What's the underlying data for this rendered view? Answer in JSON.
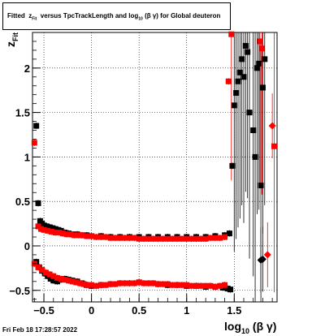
{
  "title": {
    "prefix": "Fitted",
    "z": "z",
    "z_sub": "Fit",
    "middle": "versus TpcTrackLength and log",
    "log_sub": "10",
    "suffix": "(β γ) for Global deuteron"
  },
  "footer": "Fri Feb 18 17:28:57 2022",
  "chart_data": {
    "type": "scatter",
    "xlabel_main": "log",
    "xlabel_sub": "10",
    "xlabel_suffix": "(β γ)",
    "ylabel_main": "z",
    "ylabel_sub": "Fit",
    "xlim": [
      -0.62,
      1.95
    ],
    "ylim": [
      -0.63,
      2.4
    ],
    "grid": true,
    "x_ticks": [
      -0.5,
      0,
      0.5,
      1,
      1.5
    ],
    "x_tick_labels": [
      "−0.5",
      "0",
      "0.5",
      "1",
      "1.5"
    ],
    "y_ticks": [
      -0.5,
      0,
      0.5,
      1,
      1.5,
      2
    ],
    "y_tick_labels": [
      "−0.5",
      "0",
      "0.5",
      "1",
      "1.5",
      "2"
    ],
    "series": [
      {
        "color": "#000000",
        "marker": "square",
        "upper_band": [
          [
            -0.58,
            1.35
          ],
          [
            -0.56,
            0.48
          ],
          [
            -0.54,
            0.28
          ],
          [
            -0.52,
            0.25
          ],
          [
            -0.5,
            0.23
          ],
          [
            -0.47,
            0.22
          ],
          [
            -0.44,
            0.21
          ],
          [
            -0.41,
            0.2
          ],
          [
            -0.38,
            0.19
          ],
          [
            -0.35,
            0.18
          ],
          [
            -0.32,
            0.17
          ],
          [
            -0.28,
            0.15
          ],
          [
            -0.24,
            0.14
          ],
          [
            -0.2,
            0.13
          ],
          [
            -0.15,
            0.13
          ],
          [
            -0.1,
            0.12
          ],
          [
            -0.05,
            0.12
          ],
          [
            0,
            0.11
          ],
          [
            0.1,
            0.11
          ],
          [
            0.2,
            0.1
          ],
          [
            0.3,
            0.1
          ],
          [
            0.4,
            0.1
          ],
          [
            0.5,
            0.1
          ],
          [
            0.6,
            0.1
          ],
          [
            0.7,
            0.1
          ],
          [
            0.8,
            0.1
          ],
          [
            0.9,
            0.1
          ],
          [
            1.0,
            0.1
          ],
          [
            1.1,
            0.1
          ],
          [
            1.2,
            0.1
          ],
          [
            1.3,
            0.11
          ],
          [
            1.4,
            0.12
          ],
          [
            1.45,
            0.14
          ],
          [
            1.48,
            0.9
          ]
        ],
        "lower_band": [
          [
            -0.58,
            -0.18
          ],
          [
            -0.55,
            -0.24
          ],
          [
            -0.52,
            -0.28
          ],
          [
            -0.49,
            -0.31
          ],
          [
            -0.46,
            -0.34
          ],
          [
            -0.43,
            -0.37
          ],
          [
            -0.4,
            -0.39
          ],
          [
            -0.36,
            -0.4
          ],
          [
            -0.32,
            -0.38
          ],
          [
            -0.28,
            -0.37
          ],
          [
            -0.24,
            -0.38
          ],
          [
            -0.2,
            -0.39
          ],
          [
            -0.15,
            -0.4
          ],
          [
            -0.1,
            -0.42
          ],
          [
            -0.05,
            -0.44
          ],
          [
            0,
            -0.45
          ],
          [
            0.1,
            -0.44
          ],
          [
            0.2,
            -0.43
          ],
          [
            0.3,
            -0.42
          ],
          [
            0.4,
            -0.42
          ],
          [
            0.5,
            -0.41
          ],
          [
            0.6,
            -0.42
          ],
          [
            0.7,
            -0.43
          ],
          [
            0.8,
            -0.44
          ],
          [
            0.9,
            -0.44
          ],
          [
            1.0,
            -0.45
          ],
          [
            1.1,
            -0.45
          ],
          [
            1.2,
            -0.46
          ],
          [
            1.3,
            -0.46
          ],
          [
            1.38,
            -0.47
          ],
          [
            1.43,
            -0.48
          ],
          [
            1.46,
            -0.49
          ]
        ],
        "high_points": [
          [
            1.5,
            1.58
          ],
          [
            1.52,
            1.72
          ],
          [
            1.54,
            1.85
          ],
          [
            1.56,
            1.95
          ],
          [
            1.58,
            2.1
          ],
          [
            1.6,
            1.9
          ],
          [
            1.62,
            2.25
          ],
          [
            1.64,
            2.18
          ],
          [
            1.66,
            1.5
          ],
          [
            1.7,
            1.3
          ],
          [
            1.72,
            1.0
          ],
          [
            1.74,
            2.0
          ],
          [
            1.76,
            2.05
          ],
          [
            1.78,
            0.68
          ],
          [
            1.8,
            1.78
          ],
          [
            1.82,
            2.1
          ]
        ],
        "edge_points": [
          [
            1.78,
            -0.16
          ],
          [
            1.8,
            -0.15
          ]
        ]
      },
      {
        "color": "#ff0000",
        "marker": "square",
        "upper_band": [
          [
            -0.6,
            1.16
          ],
          [
            -0.56,
            0.22
          ],
          [
            -0.53,
            0.19
          ],
          [
            -0.5,
            0.18
          ],
          [
            -0.46,
            0.17
          ],
          [
            -0.42,
            0.16
          ],
          [
            -0.38,
            0.15
          ],
          [
            -0.34,
            0.15
          ],
          [
            -0.3,
            0.14
          ],
          [
            -0.26,
            0.13
          ],
          [
            -0.22,
            0.13
          ],
          [
            -0.18,
            0.12
          ],
          [
            -0.14,
            0.12
          ],
          [
            -0.1,
            0.12
          ],
          [
            -0.05,
            0.11
          ],
          [
            0,
            0.11
          ],
          [
            0.05,
            0.1
          ],
          [
            0.1,
            0.1
          ],
          [
            0.15,
            0.1
          ],
          [
            0.2,
            0.09
          ],
          [
            0.25,
            0.09
          ],
          [
            0.3,
            0.09
          ],
          [
            0.35,
            0.09
          ],
          [
            0.4,
            0.09
          ],
          [
            0.45,
            0.09
          ],
          [
            0.5,
            0.08
          ],
          [
            0.55,
            0.08
          ],
          [
            0.6,
            0.08
          ],
          [
            0.65,
            0.08
          ],
          [
            0.7,
            0.08
          ],
          [
            0.75,
            0.08
          ],
          [
            0.8,
            0.08
          ],
          [
            0.85,
            0.08
          ],
          [
            0.9,
            0.08
          ],
          [
            0.95,
            0.08
          ],
          [
            1.0,
            0.08
          ],
          [
            1.05,
            0.08
          ],
          [
            1.1,
            0.08
          ],
          [
            1.15,
            0.08
          ],
          [
            1.2,
            0.08
          ],
          [
            1.25,
            0.09
          ],
          [
            1.3,
            0.09
          ],
          [
            1.35,
            0.09
          ],
          [
            1.4,
            0.1
          ],
          [
            1.44,
            1.85
          ]
        ],
        "lower_band": [
          [
            -0.6,
            -0.2
          ],
          [
            -0.56,
            -0.24
          ],
          [
            -0.52,
            -0.27
          ],
          [
            -0.48,
            -0.3
          ],
          [
            -0.44,
            -0.32
          ],
          [
            -0.4,
            -0.34
          ],
          [
            -0.36,
            -0.36
          ],
          [
            -0.32,
            -0.37
          ],
          [
            -0.28,
            -0.38
          ],
          [
            -0.24,
            -0.39
          ],
          [
            -0.2,
            -0.4
          ],
          [
            -0.16,
            -0.41
          ],
          [
            -0.12,
            -0.42
          ],
          [
            -0.08,
            -0.43
          ],
          [
            -0.04,
            -0.44
          ],
          [
            0,
            -0.44
          ],
          [
            0.05,
            -0.45
          ],
          [
            0.1,
            -0.44
          ],
          [
            0.15,
            -0.44
          ],
          [
            0.2,
            -0.43
          ],
          [
            0.25,
            -0.43
          ],
          [
            0.3,
            -0.42
          ],
          [
            0.35,
            -0.42
          ],
          [
            0.4,
            -0.42
          ],
          [
            0.45,
            -0.42
          ],
          [
            0.5,
            -0.41
          ],
          [
            0.55,
            -0.42
          ],
          [
            0.6,
            -0.42
          ],
          [
            0.65,
            -0.42
          ],
          [
            0.7,
            -0.43
          ],
          [
            0.75,
            -0.43
          ],
          [
            0.8,
            -0.43
          ],
          [
            0.85,
            -0.44
          ],
          [
            0.9,
            -0.44
          ],
          [
            0.95,
            -0.44
          ],
          [
            1.0,
            -0.44
          ],
          [
            1.05,
            -0.45
          ],
          [
            1.1,
            -0.45
          ],
          [
            1.15,
            -0.45
          ],
          [
            1.2,
            -0.45
          ],
          [
            1.25,
            -0.45
          ],
          [
            1.3,
            -0.46
          ],
          [
            1.35,
            -0.45
          ],
          [
            1.4,
            -0.44
          ]
        ],
        "high_points": [
          [
            1.47,
            2.38
          ],
          [
            1.77,
            2.3
          ],
          [
            1.79,
            2.22
          ],
          [
            1.92,
            1.12
          ]
        ],
        "edge_points": [
          [
            1.85,
            -0.1
          ],
          [
            1.9,
            1.35
          ]
        ]
      }
    ]
  }
}
